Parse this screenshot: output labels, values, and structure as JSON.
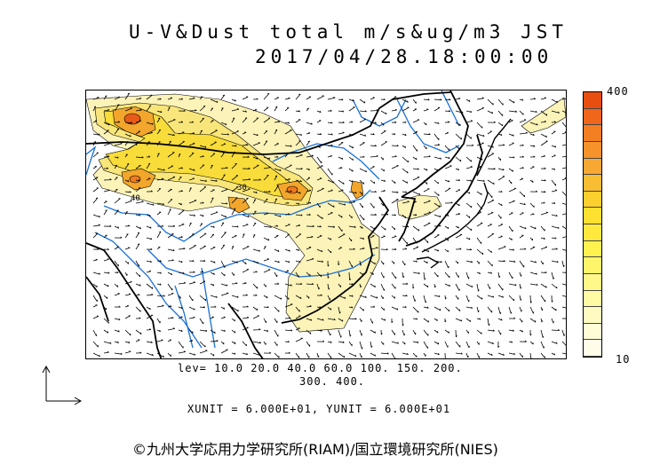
{
  "title": {
    "line1": "U-V&Dust total m/s&ug/m3 JST",
    "line2": "2017/04/28.18:00:00"
  },
  "colorbar": {
    "max_label": "400",
    "min_label": "10",
    "colors": [
      "#e84e10",
      "#f0661a",
      "#f47e22",
      "#f5932a",
      "#f7a832",
      "#f9bd33",
      "#fbcf2e",
      "#fde030",
      "#fee93c",
      "#fff14e",
      "#fff56a",
      "#fff888",
      "#fffaa4",
      "#fffbc0",
      "#fffcd6",
      "#fffde8"
    ]
  },
  "levels": {
    "line1": "lev= 10.0 20.0 40.0 60.0 100. 150. 200.",
    "line2": "300. 400."
  },
  "units": "XUNIT = 6.000E+01, YUNIT = 6.000E+01",
  "contour_labels": [
    "30",
    "40"
  ],
  "copyright": "©九州大学応用力学研究所(RIAM)/国立環境研究所(NIES)",
  "colors": {
    "land_outline": "#000000",
    "rivers": "#1a6fd6",
    "dust_light": "#fbf3b8",
    "dust_mid": "#f7e44a",
    "dust_high": "#f2a62c",
    "dust_peak": "#e85a18"
  }
}
